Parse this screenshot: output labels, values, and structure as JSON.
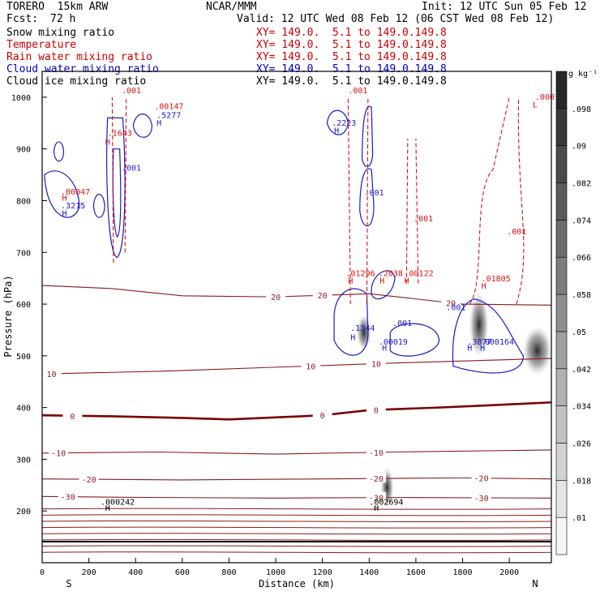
{
  "header": {
    "model": "TORERO  15km ARW",
    "center": "NCAR/MMM",
    "init": "Init: 12 UTC Sun 05 Feb 12",
    "fcst_label": "Fcst:",
    "fcst_value": "72 h",
    "valid": "Valid: 12 UTC Wed 08 Feb 12 (06 CST Wed 08 Feb 12)"
  },
  "legend": [
    {
      "name": "Snow mixing ratio",
      "color": "#000000",
      "xy": "XY= 149.0.  5.1 to 149.0.149.8",
      "xy_color": "#cc0000"
    },
    {
      "name": "Temperature",
      "color": "#cc0000",
      "xy": "XY= 149.0.  5.1 to 149.0.149.8",
      "xy_color": "#cc0000"
    },
    {
      "name": "Rain water mixing ratio",
      "color": "#cc0000",
      "xy": "XY= 149.0.  5.1 to 149.0.149.8",
      "xy_color": "#cc0000"
    },
    {
      "name": "Cloud water mixing ratio",
      "color": "#0000cc",
      "xy": "XY= 149.0.  5.1 to 149.0.149.8",
      "xy_color": "#0000cc"
    },
    {
      "name": "Cloud ice mixing ratio",
      "color": "#000000",
      "xy": "XY= 149.0.  5.1 to 149.0.149.8",
      "xy_color": "#000000"
    }
  ],
  "colors": {
    "temperature": "#8b1a1a",
    "zero_isotherm": "#7a0000",
    "cloud_water": "#1a1acc",
    "rain": "#dd1111",
    "label_black": "#000000"
  },
  "chart_data": {
    "type": "contour-cross-section",
    "xlabel": "Distance (km)",
    "ylabel": "Pressure (hPa)",
    "xlim": [
      0,
      2180
    ],
    "ylim": [
      1050,
      100
    ],
    "x_ticks": [
      "0",
      "200",
      "400",
      "600",
      "800",
      "1000",
      "1200",
      "1400",
      "1600",
      "1800",
      "2000"
    ],
    "y_ticks": [
      "200",
      "300",
      "400",
      "500",
      "600",
      "700",
      "800",
      "900",
      "1000"
    ],
    "x_end_labels": {
      "left": "S",
      "right": "N"
    },
    "colorbar": {
      "unit": "g kg⁻¹",
      "labels": [
        ".01",
        ".018",
        ".026",
        ".034",
        ".042",
        ".05",
        ".058",
        ".066",
        ".074",
        ".082",
        ".09",
        ".098"
      ]
    },
    "isotherms": [
      {
        "value": -30,
        "points": [
          [
            0,
            228
          ],
          [
            500,
            226
          ],
          [
            1000,
            225
          ],
          [
            1500,
            226
          ],
          [
            2180,
            225
          ]
        ],
        "labels": [
          {
            "text": "-30",
            "x": 110
          },
          {
            "text": "-30",
            "x": 1430
          },
          {
            "text": "-30",
            "x": 1880
          }
        ]
      },
      {
        "value": -20,
        "points": [
          [
            0,
            262
          ],
          [
            600,
            260
          ],
          [
            1200,
            262
          ],
          [
            1800,
            264
          ],
          [
            2180,
            262
          ]
        ],
        "labels": [
          {
            "text": "-20",
            "x": 200
          },
          {
            "text": "-20",
            "x": 1430
          },
          {
            "text": "-20",
            "x": 1880
          }
        ]
      },
      {
        "value": -10,
        "points": [
          [
            0,
            312
          ],
          [
            500,
            314
          ],
          [
            1000,
            310
          ],
          [
            1500,
            314
          ],
          [
            2180,
            318
          ]
        ],
        "labels": [
          {
            "text": "-10",
            "x": 70
          },
          {
            "text": "-10",
            "x": 1430
          }
        ]
      },
      {
        "value": 0,
        "points": [
          [
            0,
            385
          ],
          [
            300,
            383
          ],
          [
            600,
            380
          ],
          [
            800,
            377
          ],
          [
            1200,
            385
          ],
          [
            1400,
            395
          ],
          [
            1700,
            400
          ],
          [
            1900,
            404
          ],
          [
            2180,
            410
          ]
        ],
        "labels": [
          {
            "text": "0",
            "x": 130
          },
          {
            "text": "0",
            "x": 1200
          },
          {
            "text": "0",
            "x": 1430
          }
        ]
      },
      {
        "value": 10,
        "points": [
          [
            0,
            465
          ],
          [
            500,
            470
          ],
          [
            1000,
            478
          ],
          [
            1500,
            486
          ],
          [
            2180,
            495
          ]
        ],
        "labels": [
          {
            "text": "10",
            "x": 40
          },
          {
            "text": "10",
            "x": 1150
          },
          {
            "text": "10",
            "x": 1430
          }
        ]
      },
      {
        "value": 20,
        "points": [
          [
            0,
            636
          ],
          [
            300,
            630
          ],
          [
            600,
            616
          ],
          [
            1000,
            614
          ],
          [
            1400,
            620
          ],
          [
            1800,
            600
          ],
          [
            2180,
            598
          ]
        ],
        "labels": [
          {
            "text": "20",
            "x": 1000
          },
          {
            "text": "20",
            "x": 1200
          },
          {
            "text": "20",
            "x": 1750
          }
        ]
      }
    ],
    "point_labels": [
      {
        "text": "H",
        "x": 270,
        "y": 200,
        "color": "black"
      },
      {
        "text": ".000242",
        "x": 250,
        "y": 212,
        "color": "black"
      },
      {
        "text": "H",
        "x": 1420,
        "y": 200,
        "color": "black"
      },
      {
        "text": ".002694",
        "x": 1400,
        "y": 212,
        "color": "black"
      },
      {
        "text": "H",
        "x": 1455,
        "y": 510,
        "color": "blue"
      },
      {
        "text": ".00019",
        "x": 1440,
        "y": 522,
        "color": "blue"
      },
      {
        "text": "H",
        "x": 1320,
        "y": 530,
        "color": "blue"
      },
      {
        "text": ".1344",
        "x": 1320,
        "y": 548,
        "color": "blue"
      },
      {
        "text": ".001",
        "x": 1500,
        "y": 558,
        "color": "blue"
      },
      {
        "text": ".001",
        "x": 1730,
        "y": 588,
        "color": "blue"
      },
      {
        "text": "H",
        "x": 1820,
        "y": 510,
        "color": "blue"
      },
      {
        "text": "H",
        "x": 1875,
        "y": 510,
        "color": "blue"
      },
      {
        "text": ".3877",
        "x": 1820,
        "y": 522,
        "color": "blue"
      },
      {
        "text": "000164",
        "x": 1895,
        "y": 522,
        "color": "blue"
      },
      {
        "text": "H",
        "x": 1310,
        "y": 640,
        "color": "red"
      },
      {
        "text": ".01296",
        "x": 1300,
        "y": 654,
        "color": "red"
      },
      {
        "text": "H",
        "x": 1445,
        "y": 640,
        "color": "red"
      },
      {
        "text": ".2038",
        "x": 1440,
        "y": 654,
        "color": "red"
      },
      {
        "text": "H",
        "x": 1550,
        "y": 640,
        "color": "red"
      },
      {
        "text": ".00122",
        "x": 1550,
        "y": 654,
        "color": "red"
      },
      {
        "text": "H",
        "x": 1880,
        "y": 630,
        "color": "red"
      },
      {
        "text": ".01805",
        "x": 1880,
        "y": 644,
        "color": "red"
      },
      {
        "text": ".001",
        "x": 1590,
        "y": 760,
        "color": "red"
      },
      {
        "text": ".001",
        "x": 1990,
        "y": 735,
        "color": "red"
      },
      {
        "text": "H",
        "x": 85,
        "y": 770,
        "color": "blue"
      },
      {
        "text": ".3215",
        "x": 80,
        "y": 785,
        "color": "blue"
      },
      {
        "text": "H",
        "x": 85,
        "y": 800,
        "color": "red"
      },
      {
        "text": ".00047",
        "x": 80,
        "y": 812,
        "color": "red"
      },
      {
        "text": ".001",
        "x": 340,
        "y": 858,
        "color": "blue"
      },
      {
        "text": ".001",
        "x": 1380,
        "y": 810,
        "color": "blue"
      },
      {
        "text": "H",
        "x": 270,
        "y": 908,
        "color": "red"
      },
      {
        "text": ".1643",
        "x": 280,
        "y": 925,
        "color": "red"
      },
      {
        "text": "H",
        "x": 490,
        "y": 945,
        "color": "blue"
      },
      {
        "text": ".5277",
        "x": 490,
        "y": 960,
        "color": "blue"
      },
      {
        "text": ".00147",
        "x": 480,
        "y": 977,
        "color": "red"
      },
      {
        "text": "H",
        "x": 1250,
        "y": 930,
        "color": "blue"
      },
      {
        "text": ".2223",
        "x": 1240,
        "y": 945,
        "color": "blue"
      },
      {
        "text": ".001",
        "x": 340,
        "y": 1008,
        "color": "red"
      },
      {
        "text": ".001",
        "x": 1310,
        "y": 1008,
        "color": "red"
      },
      {
        "text": "L",
        "x": 2100,
        "y": 980,
        "color": "red"
      },
      {
        "text": ".000",
        "x": 2110,
        "y": 995,
        "color": "red"
      }
    ]
  }
}
